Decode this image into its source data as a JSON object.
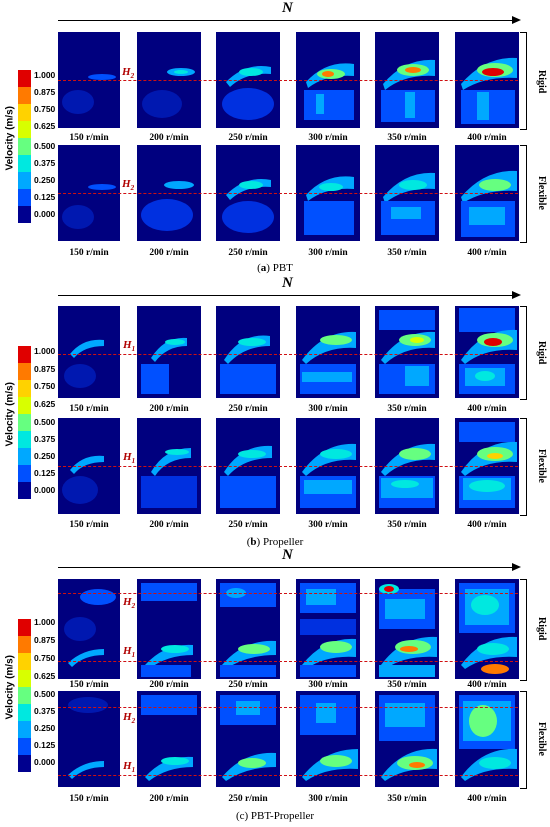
{
  "figure": {
    "arrow_label": "N",
    "speeds": [
      "150 r/min",
      "200 r/min",
      "250 r/min",
      "300 r/min",
      "350 r/min",
      "400 r/min"
    ],
    "colorbar": {
      "label": "Velocity (m/s)",
      "ticks": [
        "1.000",
        "0.875",
        "0.750",
        "0.625",
        "0.500",
        "0.375",
        "0.250",
        "0.125",
        "0.000"
      ],
      "colors": [
        "#e00000",
        "#ff7a00",
        "#ffd200",
        "#d8ff00",
        "#66ff80",
        "#00e8e0",
        "#00a8ff",
        "#0050ff",
        "#00008f"
      ]
    },
    "row_labels": {
      "rigid": "Rigid",
      "flexible": "Flexible"
    },
    "panels": [
      {
        "id": "a",
        "caption_letter": "a",
        "caption_text": "PBT",
        "h_labels": [
          {
            "main": "H",
            "sub": "2"
          }
        ]
      },
      {
        "id": "b",
        "caption_letter": "b",
        "caption_text": "Propeller",
        "h_labels": [
          {
            "main": "H",
            "sub": "1"
          }
        ]
      },
      {
        "id": "c",
        "caption_letter": "",
        "caption_text": "(c) PBT-Propeller",
        "h_labels": [
          {
            "main": "H",
            "sub": "2"
          },
          {
            "main": "H",
            "sub": "1"
          }
        ]
      }
    ]
  }
}
